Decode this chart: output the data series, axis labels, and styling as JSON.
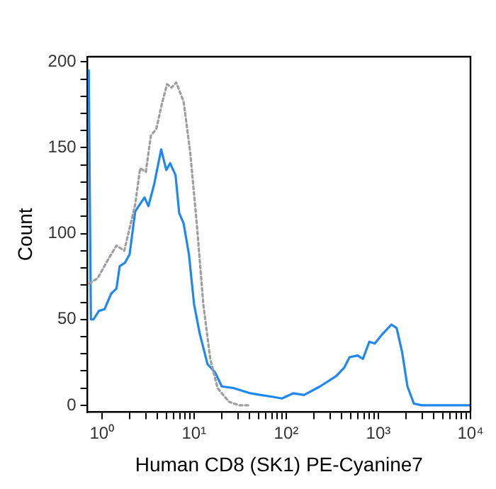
{
  "chart_data": {
    "type": "line",
    "xlabel": "Human CD8 (SK1) PE-Cyanine7",
    "ylabel": "Count",
    "log": "x",
    "grid": false,
    "legend": false,
    "marker": "none",
    "xlim": [
      0.7,
      10000
    ],
    "xticks": [
      {
        "value": 1,
        "label": "10⁰"
      },
      {
        "value": 2,
        "label": null
      },
      {
        "value": 3,
        "label": null
      },
      {
        "value": 4,
        "label": null
      },
      {
        "value": 5,
        "label": null
      },
      {
        "value": 6,
        "label": null
      },
      {
        "value": 7,
        "label": null
      },
      {
        "value": 8,
        "label": null
      },
      {
        "value": 9,
        "label": null
      },
      {
        "value": 10,
        "label": "10¹"
      },
      {
        "value": 20,
        "label": null
      },
      {
        "value": 30,
        "label": null
      },
      {
        "value": 40,
        "label": null
      },
      {
        "value": 50,
        "label": null
      },
      {
        "value": 60,
        "label": null
      },
      {
        "value": 70,
        "label": null
      },
      {
        "value": 80,
        "label": null
      },
      {
        "value": 90,
        "label": null
      },
      {
        "value": 100,
        "label": "10²"
      },
      {
        "value": 200,
        "label": null
      },
      {
        "value": 300,
        "label": null
      },
      {
        "value": 400,
        "label": null
      },
      {
        "value": 500,
        "label": null
      },
      {
        "value": 600,
        "label": null
      },
      {
        "value": 700,
        "label": null
      },
      {
        "value": 800,
        "label": null
      },
      {
        "value": 900,
        "label": null
      },
      {
        "value": 1000,
        "label": "10³"
      },
      {
        "value": 2000,
        "label": null
      },
      {
        "value": 3000,
        "label": null
      },
      {
        "value": 4000,
        "label": null
      },
      {
        "value": 5000,
        "label": null
      },
      {
        "value": 6000,
        "label": null
      },
      {
        "value": 7000,
        "label": null
      },
      {
        "value": 8000,
        "label": null
      },
      {
        "value": 9000,
        "label": null
      },
      {
        "value": 10000,
        "label": "10⁴"
      }
    ],
    "ylim": [
      -4,
      203
    ],
    "yticks": [
      0,
      {
        "value": 10,
        "label": null
      },
      {
        "value": 20,
        "label": null
      },
      {
        "value": 30,
        "label": null
      },
      {
        "value": 40,
        "label": null
      },
      50,
      {
        "value": 60,
        "label": null
      },
      {
        "value": 70,
        "label": null
      },
      {
        "value": 80,
        "label": null
      },
      {
        "value": 90,
        "label": null
      },
      100,
      {
        "value": 110,
        "label": null
      },
      {
        "value": 120,
        "label": null
      },
      {
        "value": 130,
        "label": null
      },
      {
        "value": 140,
        "label": null
      },
      150,
      {
        "value": 160,
        "label": null
      },
      {
        "value": 170,
        "label": null
      },
      {
        "value": 180,
        "label": null
      },
      {
        "value": 190,
        "label": null
      },
      200
    ],
    "series": [
      {
        "color": "#9e9e9e",
        "line_style": "dotted",
        "x": [
          0.73,
          0.9,
          1.17,
          1.44,
          1.75,
          2.3,
          2.6,
          3.0,
          3.4,
          3.9,
          4.5,
          5.1,
          5.7,
          6.4,
          7.7,
          9.1,
          10.7,
          12.6,
          15,
          18,
          24,
          31,
          40
        ],
        "values": [
          71,
          74,
          85,
          93,
          90,
          117,
          138,
          136,
          157,
          161,
          176,
          187,
          185,
          188,
          177,
          147,
          106,
          59,
          27,
          10,
          2,
          0,
          0
        ]
      },
      {
        "color": "#1e88f0",
        "line_style": "solid",
        "x": [
          0.72,
          0.76,
          0.81,
          0.93,
          1.07,
          1.26,
          1.44,
          1.56,
          1.78,
          2.0,
          2.3,
          2.9,
          3.2,
          3.7,
          4.4,
          5.0,
          5.5,
          6.3,
          6.9,
          7.7,
          8.8,
          10,
          11.5,
          14,
          17,
          20,
          27,
          41,
          53,
          70,
          90,
          119,
          156,
          233,
          349,
          427,
          487,
          596,
          680,
          798,
          915,
          1088,
          1385,
          1580,
          1811,
          2070,
          2430,
          2970,
          10000
        ],
        "values": [
          195,
          50,
          50,
          55,
          56,
          65,
          68,
          81,
          83,
          88,
          113,
          121,
          116,
          129,
          149,
          137,
          141,
          134,
          112,
          106,
          88,
          59,
          42,
          24,
          19,
          11,
          10,
          7,
          6,
          5,
          4,
          7,
          6,
          11,
          17,
          22,
          28,
          29,
          27,
          37,
          36,
          41,
          47,
          45,
          31,
          11,
          1,
          0,
          0
        ]
      }
    ]
  }
}
